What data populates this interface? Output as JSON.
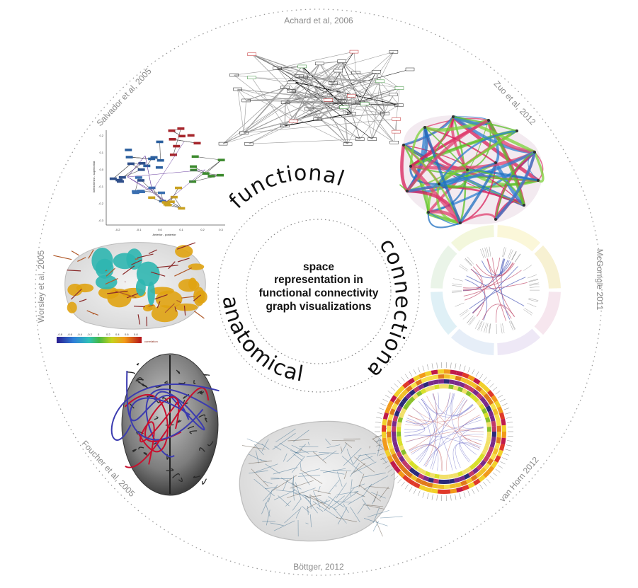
{
  "center": {
    "lines": [
      "space",
      "representation in",
      "functional connectivity",
      "graph visualizations"
    ]
  },
  "axes": {
    "top": "functional",
    "right": "connectional",
    "bottom_left": "anatomical"
  },
  "citations": {
    "achard": "Achard et al, 2006",
    "zuo": "Zuo et al, 2012",
    "mcgonigle": "McGonigle 2011",
    "vanhorn": "van Horn 2012",
    "bottger": "Böttger, 2012",
    "foucher": "Foucher et al, 2005",
    "worsley": "Worsley et al, 2005",
    "salvador": "Salvador et al, 2005"
  },
  "panels": {
    "salvador": {
      "x_axis_label": "Anterior - posterior",
      "y_axis_label": "Inferior/med - superior/lat",
      "x_ticks": [
        "-0.2",
        "-0.1",
        "0.0",
        "0.1",
        "0.2",
        "0.3"
      ],
      "y_ticks": [
        "0.2",
        "0.1",
        "0.0",
        "-0.1",
        "-0.2",
        "-0.3"
      ]
    },
    "worsley": {
      "colorbar_ticks": [
        "-0.8",
        "-0.6",
        "-0.4",
        "-0.2",
        "0",
        "0.2",
        "0.4",
        "0.6",
        "0.8"
      ],
      "colorbar_label": "correlation"
    }
  },
  "colors": {
    "dotted_circle": "#9a9a9a",
    "zuo_blue": "#2e7fd1",
    "zuo_green": "#5cc22a",
    "zuo_red": "#d81f5a",
    "worsley_gold": "#e0a312",
    "worsley_teal": "#2fb6b0",
    "foucher_red": "#c8102e",
    "foucher_blue": "#3b3bb0"
  }
}
